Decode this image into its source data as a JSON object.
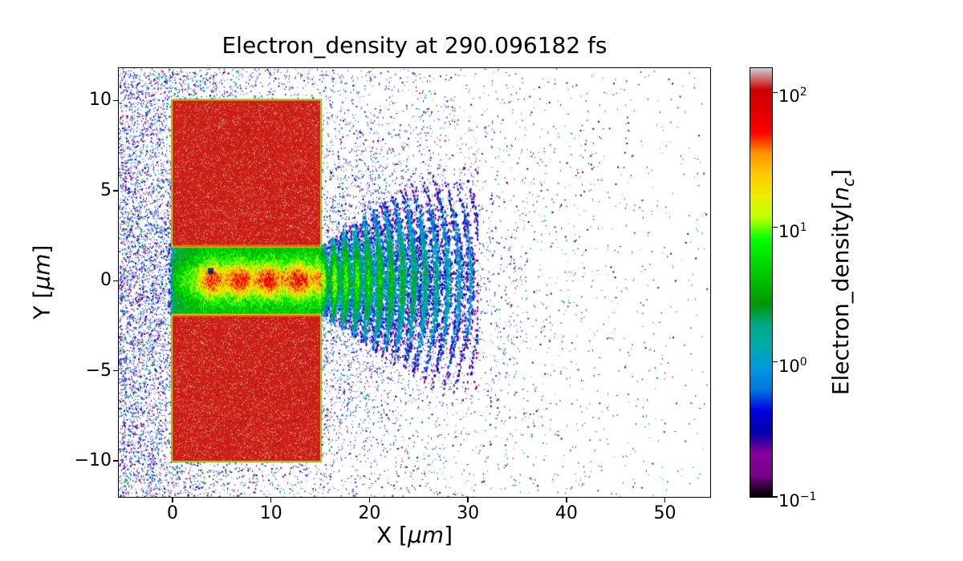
{
  "chart_data": {
    "type": "heatmap",
    "title": "Electron_density at 290.096182 fs",
    "time_fs": 290.096182,
    "xlabel": "X [μm]",
    "ylabel": "Y [μm]",
    "xlabel_parts": {
      "pre": "X [",
      "unit": "μm",
      "post": "]"
    },
    "ylabel_parts": {
      "pre": "Y [",
      "unit": "μm",
      "post": "]"
    },
    "xlim": [
      -5.46,
      54.6
    ],
    "ylim": [
      -12.0,
      11.8
    ],
    "xticks": {
      "values": [
        0,
        10,
        20,
        30,
        40,
        50
      ],
      "labels": [
        "0",
        "10",
        "20",
        "30",
        "40",
        "50"
      ]
    },
    "yticks": {
      "values": [
        10,
        5,
        0,
        -5,
        -10
      ],
      "labels": [
        "10",
        "5",
        "0",
        "−5",
        "−10"
      ]
    },
    "grid": false,
    "colorbar": {
      "label": "Electron_density[n_c]",
      "label_parts": {
        "pre": "Electron_density[",
        "var": "n",
        "sub": "c",
        "post": "]"
      },
      "scale": "log",
      "vmin_log10": -1,
      "vmax_log10": 2.18,
      "ticks": [
        {
          "log10": 2,
          "base": "10",
          "exp": "2"
        },
        {
          "log10": 1,
          "base": "10",
          "exp": "1"
        },
        {
          "log10": 0,
          "base": "10",
          "exp": "0"
        },
        {
          "log10": -1,
          "base": "10",
          "exp": "−1"
        }
      ],
      "colormap": "nipy_spectral",
      "colormap_stops": [
        [
          0.0,
          [
            0,
            0,
            0
          ]
        ],
        [
          0.05,
          [
            119,
            0,
            136
          ]
        ],
        [
          0.1,
          [
            136,
            0,
            153
          ]
        ],
        [
          0.15,
          [
            0,
            0,
            170
          ]
        ],
        [
          0.2,
          [
            0,
            0,
            221
          ]
        ],
        [
          0.25,
          [
            0,
            119,
            221
          ]
        ],
        [
          0.3,
          [
            0,
            153,
            221
          ]
        ],
        [
          0.35,
          [
            0,
            170,
            170
          ]
        ],
        [
          0.4,
          [
            0,
            170,
            136
          ]
        ],
        [
          0.45,
          [
            0,
            153,
            0
          ]
        ],
        [
          0.5,
          [
            0,
            187,
            0
          ]
        ],
        [
          0.55,
          [
            0,
            221,
            0
          ]
        ],
        [
          0.6,
          [
            0,
            255,
            0
          ]
        ],
        [
          0.65,
          [
            187,
            255,
            0
          ]
        ],
        [
          0.7,
          [
            238,
            238,
            0
          ]
        ],
        [
          0.75,
          [
            255,
            204,
            0
          ]
        ],
        [
          0.8,
          [
            255,
            153,
            0
          ]
        ],
        [
          0.85,
          [
            255,
            0,
            0
          ]
        ],
        [
          0.9,
          [
            221,
            0,
            0
          ]
        ],
        [
          0.95,
          [
            204,
            0,
            0
          ]
        ],
        [
          1.0,
          [
            204,
            204,
            204
          ]
        ]
      ]
    },
    "features": {
      "description": "Two dense target slabs (~100 n_c, red) spanning x=0..15 μm with a central channel |y|<1.9 μm of 1-30 n_c plasma (green/yellow/orange core with red specks), an exhaust plume with vertical striations expanding from x=15 to ~31 μm, and a diffuse low-density electron halo (0.1-1 n_c blue/cyan/purple speckle) densest near the target and thinning toward x=55 μm",
      "targets": [
        {
          "x0": 0,
          "x1": 15,
          "y0": 1.9,
          "y1": 10,
          "log10_density": 2.0
        },
        {
          "x0": 0,
          "x1": 15,
          "y0": -10,
          "y1": -1.9,
          "log10_density": 2.0
        }
      ],
      "channel": {
        "x0": 0,
        "x1": 15,
        "half_width": 1.9,
        "log10_density_core": 1.0,
        "log10_density_edge": 0.6
      },
      "plume": {
        "x0": 15,
        "x1": 31,
        "spread_rate": 0.38,
        "stripe_period_um": 1.15,
        "log10_density_start": 0.8,
        "decay_per_um": 0.08
      },
      "halo": {
        "decay_length_um": 14,
        "log10_density": -0.45
      }
    }
  }
}
